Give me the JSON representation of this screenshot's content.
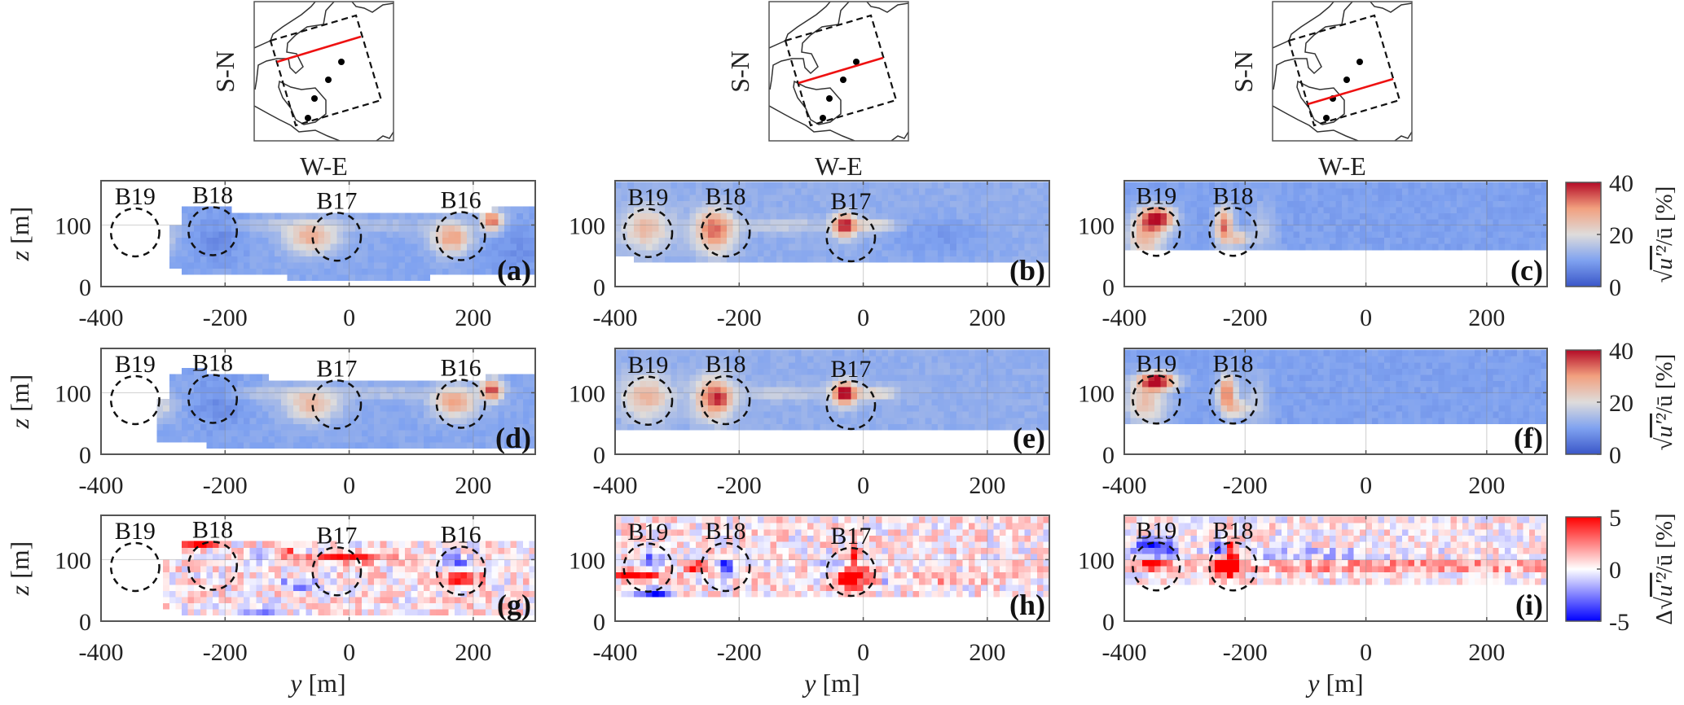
{
  "axes": {
    "xlabel_var": "y",
    "ylabel_var": "z",
    "unit": " [m]"
  },
  "insets": [
    {
      "xlabel": "W-E",
      "ylabel": "S-N"
    },
    {
      "xlabel": "W-E",
      "ylabel": "S-N"
    },
    {
      "xlabel": "W-E",
      "ylabel": "S-N"
    }
  ],
  "colorbars": [
    {
      "ticks": [
        "40",
        "20",
        "0"
      ],
      "label_prefix": "√",
      "label_radicand": "u′²",
      "label_suffix": "/ū [%]",
      "colors": [
        "#3a56c8",
        "#7fa2f0",
        "#dedcdb",
        "#f2a07f",
        "#b40a26"
      ]
    },
    {
      "ticks": [
        "40",
        "20",
        "0"
      ],
      "label_prefix": "√",
      "label_radicand": "u′²",
      "label_suffix": "/ū [%]",
      "colors": [
        "#3a56c8",
        "#7fa2f0",
        "#dedcdb",
        "#f2a07f",
        "#b40a26"
      ]
    },
    {
      "ticks": [
        "5",
        "0",
        "-5"
      ],
      "label_prefix": "Δ√",
      "label_radicand": "u′²",
      "label_suffix": "/ū [%]",
      "colors": [
        "#0000ff",
        "#8080ff",
        "#ffffff",
        "#ff8080",
        "#ff0000"
      ]
    }
  ],
  "chart_data": [
    {
      "panel": "(a)",
      "type": "heatmap",
      "xlim": [
        -400,
        300
      ],
      "ylim": [
        0,
        172
      ],
      "xticks": [
        "-400",
        "-200",
        "0",
        "200"
      ],
      "yticks": [
        "0",
        "100"
      ],
      "clim": [
        0,
        40
      ],
      "turbines": [
        {
          "name": "B19",
          "y": -345,
          "z": 88
        },
        {
          "name": "B18",
          "y": -220,
          "z": 90
        },
        {
          "name": "B17",
          "y": -20,
          "z": 81
        },
        {
          "name": "B16",
          "y": 180,
          "z": 82
        }
      ],
      "coverage": [
        [
          -290,
          -270,
          30,
          95
        ],
        [
          -270,
          -190,
          20,
          125
        ],
        [
          -190,
          -100,
          20,
          115
        ],
        [
          -100,
          130,
          10,
          115
        ],
        [
          130,
          230,
          20,
          115
        ],
        [
          230,
          300,
          20,
          125
        ]
      ],
      "field": {
        "base": 11,
        "noise": 1.2,
        "blobs": [
          [
            -300,
            85,
            8,
            15,
            15
          ],
          [
            -210,
            85,
            -4,
            30,
            30
          ],
          [
            -60,
            80,
            16,
            30,
            18
          ],
          [
            -130,
            100,
            5,
            60,
            8
          ],
          [
            60,
            100,
            4,
            60,
            8
          ],
          [
            165,
            80,
            19,
            22,
            18
          ],
          [
            230,
            108,
            24,
            12,
            12
          ],
          [
            270,
            60,
            -3,
            40,
            30
          ]
        ]
      }
    },
    {
      "panel": "(b)",
      "type": "heatmap",
      "xlim": [
        -400,
        300
      ],
      "ylim": [
        0,
        172
      ],
      "xticks": [
        "-400",
        "-200",
        "0",
        "200"
      ],
      "yticks": [
        "0",
        "100"
      ],
      "clim": [
        0,
        40
      ],
      "turbines": [
        {
          "name": "B19",
          "y": -347,
          "z": 87
        },
        {
          "name": "B18",
          "y": -222,
          "z": 88
        },
        {
          "name": "B17",
          "y": -20,
          "z": 80
        }
      ],
      "coverage": [
        [
          -400,
          -365,
          50,
          165
        ],
        [
          -365,
          300,
          38,
          165
        ]
      ],
      "field": {
        "base": 12,
        "noise": 1.2,
        "blobs": [
          [
            -350,
            95,
            14,
            28,
            25
          ],
          [
            -240,
            92,
            22,
            22,
            25
          ],
          [
            -30,
            100,
            26,
            14,
            14
          ],
          [
            20,
            100,
            10,
            25,
            8
          ],
          [
            -130,
            100,
            6,
            60,
            8
          ],
          [
            120,
            80,
            -3,
            60,
            25
          ]
        ]
      }
    },
    {
      "panel": "(c)",
      "type": "heatmap",
      "xlim": [
        -400,
        300
      ],
      "ylim": [
        0,
        172
      ],
      "xticks": [
        "-400",
        "-200",
        "0",
        "200"
      ],
      "yticks": [
        "0",
        "100"
      ],
      "clim": [
        0,
        40
      ],
      "turbines": [
        {
          "name": "B19",
          "y": -347,
          "z": 89
        },
        {
          "name": "B18",
          "y": -220,
          "z": 89
        }
      ],
      "coverage": [
        [
          -400,
          300,
          58,
          165
        ]
      ],
      "field": {
        "base": 10,
        "noise": 1.2,
        "blobs": [
          [
            -345,
            112,
            28,
            20,
            14
          ],
          [
            -365,
            80,
            16,
            22,
            25
          ],
          [
            -235,
            100,
            24,
            10,
            22
          ],
          [
            -210,
            78,
            14,
            12,
            10
          ],
          [
            -170,
            95,
            6,
            15,
            30
          ]
        ]
      }
    },
    {
      "panel": "(d)",
      "type": "heatmap",
      "xlim": [
        -400,
        300
      ],
      "ylim": [
        0,
        172
      ],
      "xticks": [
        "-400",
        "-200",
        "0",
        "200"
      ],
      "yticks": [
        "0",
        "100"
      ],
      "clim": [
        0,
        40
      ],
      "turbines": [
        {
          "name": "B19",
          "y": -345,
          "z": 88
        },
        {
          "name": "B18",
          "y": -220,
          "z": 90
        },
        {
          "name": "B17",
          "y": -20,
          "z": 81
        },
        {
          "name": "B16",
          "y": 180,
          "z": 82
        }
      ],
      "coverage": [
        [
          -310,
          -290,
          25,
          90
        ],
        [
          -290,
          -230,
          20,
          125
        ],
        [
          -270,
          -230,
          125,
          140
        ],
        [
          -230,
          -130,
          10,
          125
        ],
        [
          -130,
          300,
          10,
          115
        ],
        [
          220,
          300,
          115,
          125
        ]
      ],
      "field": {
        "base": 11,
        "noise": 1.2,
        "blobs": [
          [
            -300,
            80,
            8,
            15,
            15
          ],
          [
            -210,
            85,
            -4,
            30,
            30
          ],
          [
            -60,
            80,
            15,
            30,
            18
          ],
          [
            -130,
            100,
            5,
            60,
            8
          ],
          [
            60,
            100,
            5,
            60,
            8
          ],
          [
            170,
            85,
            18,
            25,
            18
          ],
          [
            230,
            105,
            26,
            12,
            12
          ]
        ]
      }
    },
    {
      "panel": "(e)",
      "type": "heatmap",
      "xlim": [
        -400,
        300
      ],
      "ylim": [
        0,
        172
      ],
      "xticks": [
        "-400",
        "-200",
        "0",
        "200"
      ],
      "yticks": [
        "0",
        "100"
      ],
      "clim": [
        0,
        40
      ],
      "turbines": [
        {
          "name": "B19",
          "y": -347,
          "z": 87
        },
        {
          "name": "B18",
          "y": -222,
          "z": 88
        },
        {
          "name": "B17",
          "y": -20,
          "z": 80
        }
      ],
      "coverage": [
        [
          -400,
          -370,
          45,
          165
        ],
        [
          -370,
          300,
          38,
          165
        ]
      ],
      "field": {
        "base": 12,
        "noise": 1.2,
        "blobs": [
          [
            -350,
            95,
            15,
            28,
            25
          ],
          [
            -240,
            92,
            22,
            22,
            25
          ],
          [
            -230,
            90,
            8,
            8,
            8
          ],
          [
            -30,
            100,
            28,
            14,
            14
          ],
          [
            20,
            100,
            10,
            25,
            8
          ],
          [
            -130,
            100,
            6,
            60,
            8
          ]
        ]
      }
    },
    {
      "panel": "(f)",
      "type": "heatmap",
      "xlim": [
        -400,
        300
      ],
      "ylim": [
        0,
        172
      ],
      "xticks": [
        "-400",
        "-200",
        "0",
        "200"
      ],
      "yticks": [
        "0",
        "100"
      ],
      "clim": [
        0,
        40
      ],
      "turbines": [
        {
          "name": "B19",
          "y": -347,
          "z": 89
        },
        {
          "name": "B18",
          "y": -220,
          "z": 89
        }
      ],
      "coverage": [
        [
          -400,
          -170,
          55,
          165
        ],
        [
          -170,
          300,
          50,
          165
        ]
      ],
      "field": {
        "base": 10,
        "noise": 1.2,
        "blobs": [
          [
            -345,
            120,
            30,
            22,
            10
          ],
          [
            -365,
            85,
            15,
            25,
            25
          ],
          [
            -230,
            100,
            24,
            10,
            22
          ],
          [
            -210,
            75,
            12,
            12,
            10
          ],
          [
            -180,
            90,
            6,
            15,
            30
          ]
        ]
      }
    },
    {
      "panel": "(g)",
      "type": "heatmap",
      "xlim": [
        -400,
        300
      ],
      "ylim": [
        0,
        172
      ],
      "xticks": [
        "-400",
        "-200",
        "0",
        "200"
      ],
      "yticks": [
        "0",
        "100"
      ],
      "clim": [
        -5,
        5
      ],
      "turbines": [
        {
          "name": "B19",
          "y": -345,
          "z": 88
        },
        {
          "name": "B18",
          "y": -220,
          "z": 90
        },
        {
          "name": "B17",
          "y": -20,
          "z": 81
        },
        {
          "name": "B16",
          "y": 180,
          "z": 82
        }
      ],
      "coverage": [
        [
          -300,
          -270,
          20,
          95
        ],
        [
          -270,
          -100,
          15,
          125
        ],
        [
          -100,
          300,
          10,
          125
        ]
      ],
      "field": {
        "base": 0.3,
        "noise": 1.6,
        "blobs": [
          [
            -240,
            125,
            6,
            18,
            4
          ],
          [
            -140,
            110,
            -6,
            12,
            4
          ],
          [
            -100,
            110,
            6,
            8,
            4
          ],
          [
            -20,
            102,
            6,
            30,
            4
          ],
          [
            40,
            102,
            4,
            25,
            4
          ],
          [
            -80,
            60,
            -4,
            20,
            6
          ],
          [
            180,
            70,
            4,
            25,
            8
          ],
          [
            170,
            95,
            -3,
            20,
            10
          ],
          [
            -140,
            20,
            -3,
            20,
            5
          ]
        ]
      }
    },
    {
      "panel": "(h)",
      "type": "heatmap",
      "xlim": [
        -400,
        300
      ],
      "ylim": [
        0,
        172
      ],
      "xticks": [
        "-400",
        "-200",
        "0",
        "200"
      ],
      "yticks": [
        "0",
        "100"
      ],
      "clim": [
        -5,
        5
      ],
      "turbines": [
        {
          "name": "B19",
          "y": -347,
          "z": 87
        },
        {
          "name": "B18",
          "y": -222,
          "z": 88
        },
        {
          "name": "B17",
          "y": -20,
          "z": 80
        }
      ],
      "coverage": [
        [
          -400,
          300,
          40,
          165
        ]
      ],
      "field": {
        "base": 0.3,
        "noise": 1.6,
        "blobs": [
          [
            -370,
            75,
            6,
            30,
            5
          ],
          [
            -345,
            100,
            -3,
            15,
            8
          ],
          [
            -340,
            48,
            -7,
            18,
            4
          ],
          [
            -270,
            90,
            5,
            12,
            6
          ],
          [
            -220,
            92,
            -6,
            8,
            8
          ],
          [
            -20,
            72,
            6,
            20,
            12
          ],
          [
            -15,
            110,
            5,
            5,
            8
          ],
          [
            -50,
            90,
            -3,
            12,
            10
          ],
          [
            40,
            70,
            -3,
            5,
            6
          ],
          [
            150,
            70,
            2,
            60,
            5
          ]
        ]
      }
    },
    {
      "panel": "(i)",
      "type": "heatmap",
      "xlim": [
        -400,
        300
      ],
      "ylim": [
        0,
        172
      ],
      "xticks": [
        "-400",
        "-200",
        "0",
        "200"
      ],
      "yticks": [
        "0",
        "100"
      ],
      "clim": [
        -5,
        5
      ],
      "turbines": [
        {
          "name": "B19",
          "y": -347,
          "z": 89
        },
        {
          "name": "B18",
          "y": -220,
          "z": 89
        }
      ],
      "coverage": [
        [
          -400,
          300,
          60,
          165
        ]
      ],
      "field": {
        "base": 0.2,
        "noise": 1.5,
        "blobs": [
          [
            -350,
            122,
            -5,
            25,
            10
          ],
          [
            -352,
            92,
            6,
            20,
            5
          ],
          [
            -230,
            90,
            6,
            18,
            14
          ],
          [
            -222,
            118,
            5,
            5,
            18
          ],
          [
            -245,
            115,
            -4,
            8,
            10
          ],
          [
            60,
            90,
            3,
            230,
            5
          ],
          [
            -100,
            110,
            -1.5,
            100,
            8
          ]
        ]
      }
    }
  ]
}
